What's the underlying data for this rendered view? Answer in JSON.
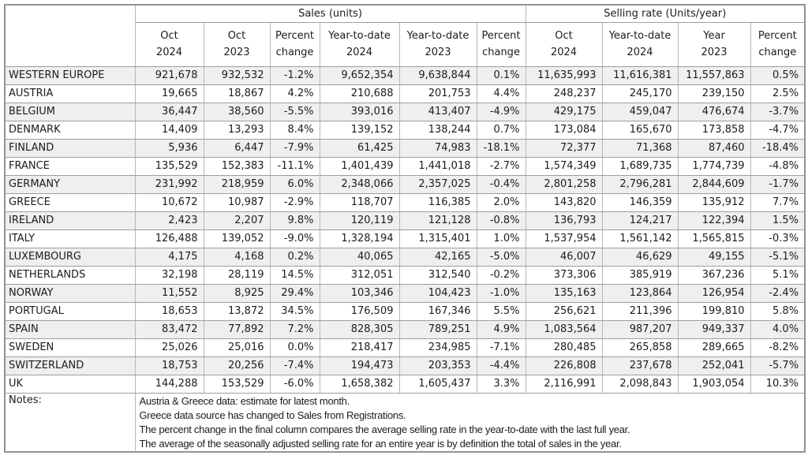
{
  "colors": {
    "row_stripe": "#efefef",
    "gridline": "#9e9e9e",
    "outer_border": "#929292",
    "text": "#1c1c1c",
    "background": "#ffffff"
  },
  "chart_data": {
    "type": "table",
    "title": "",
    "group_headers": [
      {
        "label": "Sales (units)",
        "colspan": 6
      },
      {
        "label": "Selling rate (Units/year)",
        "colspan": 4
      }
    ],
    "columns": [
      {
        "line1": "Oct",
        "line2": "2024"
      },
      {
        "line1": "Oct",
        "line2": "2023"
      },
      {
        "line1": "Percent",
        "line2": "change"
      },
      {
        "line1": "Year-to-date",
        "line2": "2024"
      },
      {
        "line1": "Year-to-date",
        "line2": "2023"
      },
      {
        "line1": "Percent",
        "line2": "change"
      },
      {
        "line1": "Oct",
        "line2": "2024"
      },
      {
        "line1": "Year-to-date",
        "line2": "2024"
      },
      {
        "line1": "Year",
        "line2": "2023"
      },
      {
        "line1": "Percent",
        "line2": "change"
      }
    ],
    "rows": [
      {
        "label": "WESTERN EUROPE",
        "values": [
          "921,678",
          "932,532",
          "-1.2%",
          "9,652,354",
          "9,638,844",
          "0.1%",
          "11,635,993",
          "11,616,381",
          "11,557,863",
          "0.5%"
        ]
      },
      {
        "label": "AUSTRIA",
        "values": [
          "19,665",
          "18,867",
          "4.2%",
          "210,688",
          "201,753",
          "4.4%",
          "248,237",
          "245,170",
          "239,150",
          "2.5%"
        ]
      },
      {
        "label": "BELGIUM",
        "values": [
          "36,447",
          "38,560",
          "-5.5%",
          "393,016",
          "413,407",
          "-4.9%",
          "429,175",
          "459,047",
          "476,674",
          "-3.7%"
        ]
      },
      {
        "label": "DENMARK",
        "values": [
          "14,409",
          "13,293",
          "8.4%",
          "139,152",
          "138,244",
          "0.7%",
          "173,084",
          "165,670",
          "173,858",
          "-4.7%"
        ]
      },
      {
        "label": "FINLAND",
        "values": [
          "5,936",
          "6,447",
          "-7.9%",
          "61,425",
          "74,983",
          "-18.1%",
          "72,377",
          "71,368",
          "87,460",
          "-18.4%"
        ]
      },
      {
        "label": "FRANCE",
        "values": [
          "135,529",
          "152,383",
          "-11.1%",
          "1,401,439",
          "1,441,018",
          "-2.7%",
          "1,574,349",
          "1,689,735",
          "1,774,739",
          "-4.8%"
        ]
      },
      {
        "label": "GERMANY",
        "values": [
          "231,992",
          "218,959",
          "6.0%",
          "2,348,066",
          "2,357,025",
          "-0.4%",
          "2,801,258",
          "2,796,281",
          "2,844,609",
          "-1.7%"
        ]
      },
      {
        "label": "GREECE",
        "values": [
          "10,672",
          "10,987",
          "-2.9%",
          "118,707",
          "116,385",
          "2.0%",
          "143,820",
          "146,359",
          "135,912",
          "7.7%"
        ]
      },
      {
        "label": "IRELAND",
        "values": [
          "2,423",
          "2,207",
          "9.8%",
          "120,119",
          "121,128",
          "-0.8%",
          "136,793",
          "124,217",
          "122,394",
          "1.5%"
        ]
      },
      {
        "label": "ITALY",
        "values": [
          "126,488",
          "139,052",
          "-9.0%",
          "1,328,194",
          "1,315,401",
          "1.0%",
          "1,537,954",
          "1,561,142",
          "1,565,815",
          "-0.3%"
        ]
      },
      {
        "label": "LUXEMBOURG",
        "values": [
          "4,175",
          "4,168",
          "0.2%",
          "40,065",
          "42,165",
          "-5.0%",
          "46,007",
          "46,629",
          "49,155",
          "-5.1%"
        ]
      },
      {
        "label": "NETHERLANDS",
        "values": [
          "32,198",
          "28,119",
          "14.5%",
          "312,051",
          "312,540",
          "-0.2%",
          "373,306",
          "385,919",
          "367,236",
          "5.1%"
        ]
      },
      {
        "label": "NORWAY",
        "values": [
          "11,552",
          "8,925",
          "29.4%",
          "103,346",
          "104,423",
          "-1.0%",
          "135,163",
          "123,864",
          "126,954",
          "-2.4%"
        ]
      },
      {
        "label": "PORTUGAL",
        "values": [
          "18,653",
          "13,872",
          "34.5%",
          "176,509",
          "167,346",
          "5.5%",
          "256,621",
          "211,396",
          "199,810",
          "5.8%"
        ]
      },
      {
        "label": "SPAIN",
        "values": [
          "83,472",
          "77,892",
          "7.2%",
          "828,305",
          "789,251",
          "4.9%",
          "1,083,564",
          "987,207",
          "949,337",
          "4.0%"
        ]
      },
      {
        "label": "SWEDEN",
        "values": [
          "25,026",
          "25,016",
          "0.0%",
          "218,417",
          "234,985",
          "-7.1%",
          "280,485",
          "265,858",
          "289,665",
          "-8.2%"
        ]
      },
      {
        "label": "SWITZERLAND",
        "values": [
          "18,753",
          "20,256",
          "-7.4%",
          "194,473",
          "203,353",
          "-4.4%",
          "226,808",
          "237,678",
          "252,041",
          "-5.7%"
        ]
      },
      {
        "label": "UK",
        "values": [
          "144,288",
          "153,529",
          "-6.0%",
          "1,658,382",
          "1,605,437",
          "3.3%",
          "2,116,991",
          "2,098,843",
          "1,903,054",
          "10.3%"
        ]
      }
    ],
    "notes": {
      "label": "Notes:",
      "lines": [
        "Austria & Greece data: estimate for latest month.",
        "Greece data source has changed to Sales from Registrations.",
        "The percent change in the final column compares the average selling rate in the year-to-date with the last full year.",
        "The average of the seasonally adjusted selling rate for an entire year is by definition the total of sales in the year."
      ]
    }
  }
}
